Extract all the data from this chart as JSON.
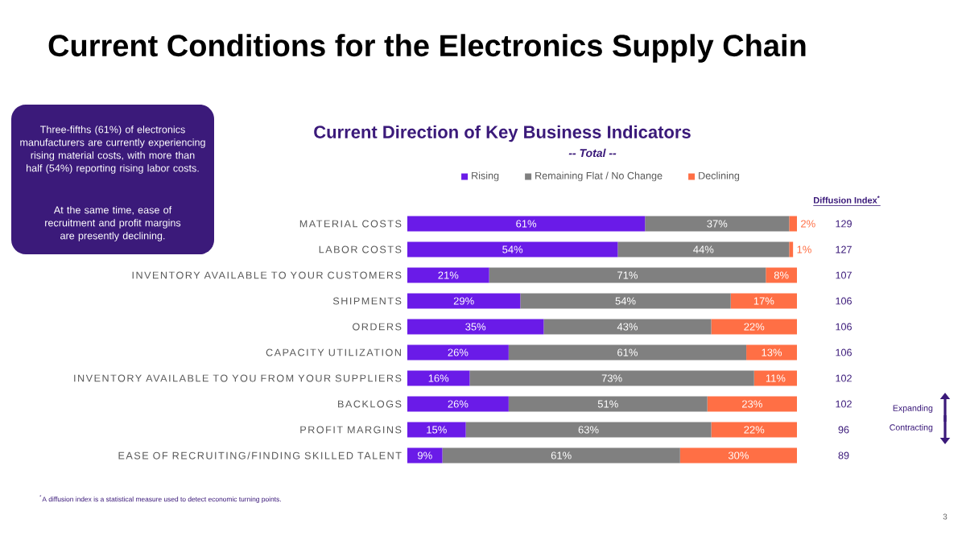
{
  "chart_data": {
    "type": "bar",
    "orientation": "horizontal",
    "stacked": true,
    "legend": "top",
    "title": "Current Direction of Key Business Indicators",
    "subtitle": "-- Total --",
    "categories": [
      "MATERIAL COSTS",
      "LABOR COSTS",
      "INVENTORY AVAILABLE TO YOUR CUSTOMERS",
      "SHIPMENTS",
      "ORDERS",
      "CAPACITY UTILIZATION",
      "INVENTORY AVAILABLE TO YOU FROM YOUR SUPPLIERS",
      "BACKLOGS",
      "PROFIT MARGINS",
      "EASE OF RECRUITING/FINDING SKILLED TALENT"
    ],
    "series": [
      {
        "name": "Rising",
        "color": "#6a1be8",
        "values": [
          61,
          54,
          21,
          29,
          35,
          26,
          16,
          26,
          15,
          9
        ],
        "value_labels": [
          "61%",
          "54%",
          "21%",
          "29%",
          "35%",
          "26%",
          "16%",
          "26%",
          "15%",
          "9%"
        ]
      },
      {
        "name": "Remaining Flat / No Change",
        "color": "#808080",
        "values": [
          37,
          44,
          71,
          54,
          43,
          61,
          73,
          51,
          63,
          61
        ],
        "value_labels": [
          "37%",
          "44%",
          "71%",
          "54%",
          "43%",
          "61%",
          "73%",
          "51%",
          "63%",
          "61%"
        ]
      },
      {
        "name": "Declining",
        "color": "#ff6f45",
        "values": [
          2,
          1,
          8,
          17,
          22,
          13,
          11,
          23,
          22,
          30
        ],
        "value_labels": [
          "2%",
          "1%",
          "8%",
          "17%",
          "22%",
          "13%",
          "11%",
          "23%",
          "22%",
          "30%"
        ]
      }
    ],
    "annotations": [
      "Current Conditions for the Electronics Supply Chain",
      "Three-fifths (61%) of electronics manufacturers are currently experiencing rising material costs, with more than half (54%) reporting rising labor costs.",
      "At the same time, ease of recruitment and profit margins are presently declining.",
      "Diffusion Index$^{*}$",
      "129",
      "127",
      "107",
      "106",
      "106",
      "106",
      "102",
      "102",
      "96",
      "89",
      "Expanding",
      "Contracting",
      "$^{*}$A diffusion index is a statistical measure used to detect economic turning points.",
      "3"
    ]
  }
}
